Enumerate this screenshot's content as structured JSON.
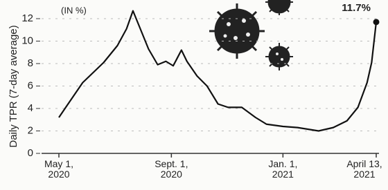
{
  "chart_data": {
    "type": "line",
    "annotation": "(IN %)",
    "y_label": "Daily TPR (7-day average)",
    "x": [
      0,
      7.5,
      26,
      49,
      64,
      74,
      81,
      87,
      98,
      108,
      117,
      125,
      134,
      140,
      151,
      162,
      174,
      185,
      200,
      215,
      227,
      245,
      261,
      284,
      300,
      315,
      327,
      337,
      342,
      347
    ],
    "values": [
      3.2,
      4.1,
      6.3,
      8.1,
      9.6,
      11.1,
      12.7,
      11.5,
      9.3,
      7.9,
      8.2,
      7.8,
      9.2,
      8.2,
      6.9,
      6.0,
      4.4,
      4.1,
      4.1,
      3.2,
      2.6,
      2.4,
      2.3,
      2.0,
      2.3,
      2.9,
      4.1,
      6.3,
      8.1,
      11.7
    ],
    "value_labels": [
      null,
      null,
      null,
      null,
      null,
      null,
      null,
      null,
      null,
      null,
      null,
      null,
      null,
      null,
      null,
      null,
      null,
      null,
      null,
      null,
      null,
      null,
      null,
      null,
      null,
      null,
      null,
      null,
      null,
      "11.7%"
    ],
    "color": "#111111",
    "xlim": [
      0,
      347
    ],
    "xticks": [
      {
        "value": 0,
        "label": "May 1, 2020"
      },
      {
        "value": 123,
        "label": "Sept. 1, 2020"
      },
      {
        "value": 245,
        "label": "Jan. 1, 2021"
      },
      {
        "value": 347,
        "label": "April 13, 2021"
      }
    ],
    "ylim": [
      0,
      12
    ],
    "yticks": [
      0,
      2,
      4,
      6,
      8,
      10,
      12
    ],
    "grid": true
  }
}
